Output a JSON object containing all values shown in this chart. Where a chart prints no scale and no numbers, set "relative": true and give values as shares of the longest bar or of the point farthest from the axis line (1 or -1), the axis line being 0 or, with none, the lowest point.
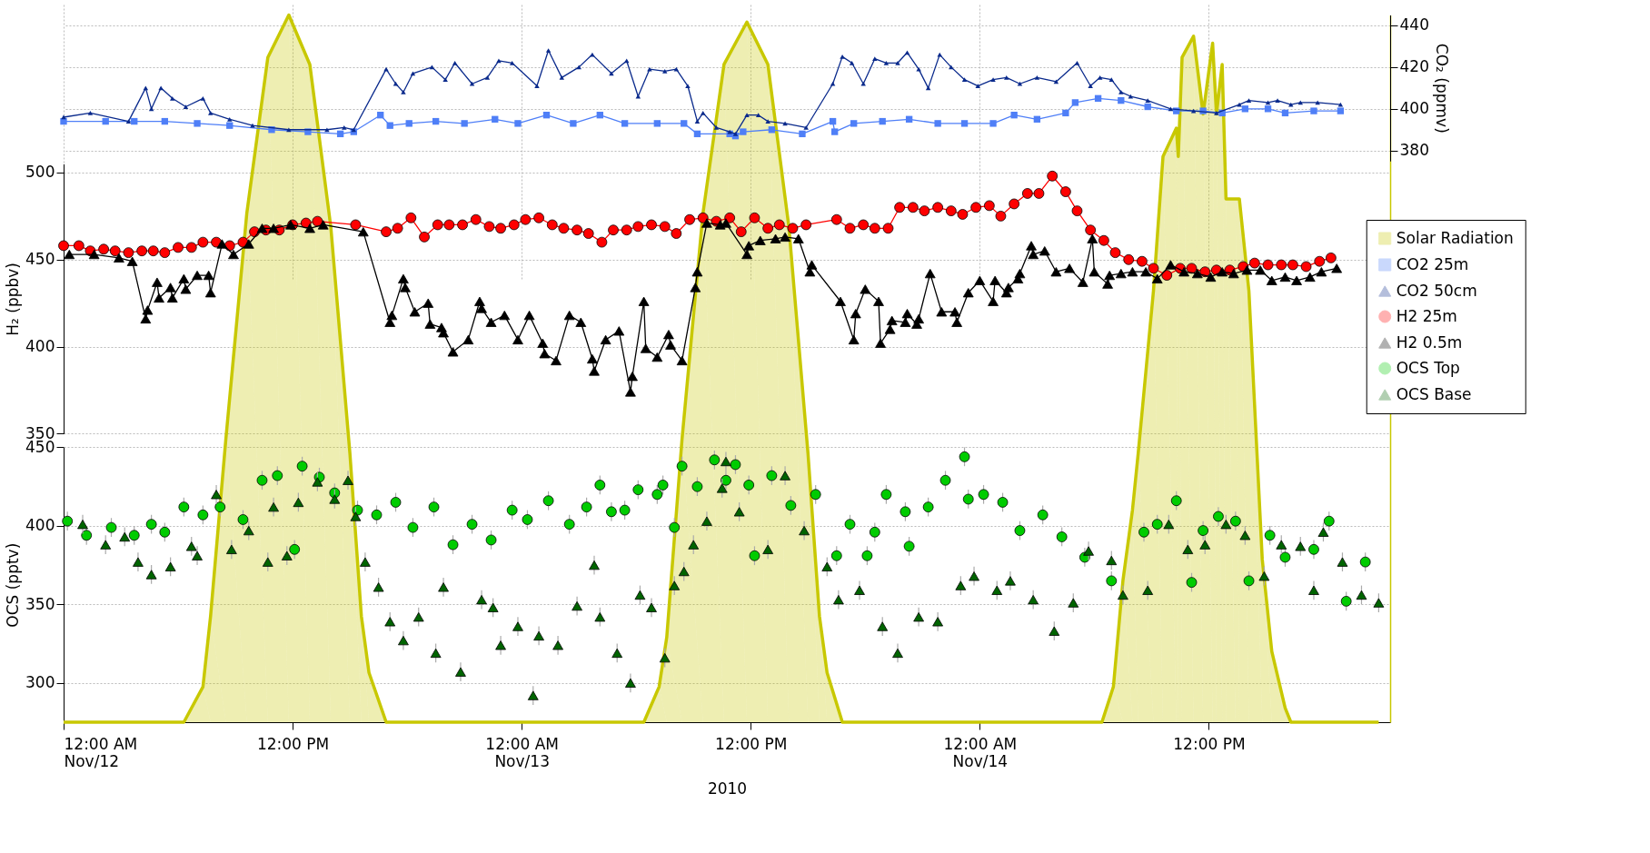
{
  "chart_data": [
    {
      "type": "line",
      "ylabel": "CO₂ (ppmv)",
      "ylim": [
        375,
        445
      ],
      "yticks": [
        380,
        400,
        420,
        440
      ],
      "grid": true,
      "legend": "right",
      "line_style": "solid",
      "tick_labels": "y",
      "xlim": [
        "2010-11-12T00:00",
        "2010-11-14T21:30"
      ],
      "series": [
        {
          "name": "CO2 25m",
          "marker": "square",
          "color": "#4f7ff7",
          "x": [
            "2010-11-12T00:00",
            "2010-11-12T02:12",
            "2010-11-12T03:42",
            "2010-11-12T05:18",
            "2010-11-12T07:00",
            "2010-11-12T08:42",
            "2010-11-12T10:54",
            "2010-11-12T12:48",
            "2010-11-12T14:30",
            "2010-11-12T15:12",
            "2010-11-12T16:36",
            "2010-11-12T17:06",
            "2010-11-12T18:06",
            "2010-11-12T19:30",
            "2010-11-12T21:00",
            "2010-11-12T22:36",
            "2010-11-12T23:48",
            "2010-11-13T01:18",
            "2010-11-13T02:42",
            "2010-11-13T04:06",
            "2010-11-13T05:24",
            "2010-11-13T07:06",
            "2010-11-13T08:30",
            "2010-11-13T09:12",
            "2010-11-13T10:54",
            "2010-11-13T11:12",
            "2010-11-13T11:36",
            "2010-11-13T13:06",
            "2010-11-13T14:42",
            "2010-11-13T16:18",
            "2010-11-13T16:24",
            "2010-11-13T17:24",
            "2010-11-13T18:54",
            "2010-11-13T20:18",
            "2010-11-13T21:48",
            "2010-11-13T23:12",
            "2010-11-14T00:42",
            "2010-11-14T01:48",
            "2010-11-14T03:00",
            "2010-11-14T04:30",
            "2010-11-14T05:00",
            "2010-11-14T06:12",
            "2010-11-14T07:24",
            "2010-11-14T08:48",
            "2010-11-14T10:18",
            "2010-11-14T11:42",
            "2010-11-14T12:42",
            "2010-11-14T13:54",
            "2010-11-14T15:06",
            "2010-11-14T16:00",
            "2010-11-14T17:30",
            "2010-11-14T18:54"
          ],
          "values": [
            394,
            394,
            394,
            394,
            393,
            392,
            390,
            389,
            388,
            389,
            397,
            392,
            393,
            394,
            393,
            395,
            393,
            397,
            393,
            397,
            393,
            393,
            393,
            388,
            388,
            387,
            389,
            390,
            388,
            394,
            389,
            393,
            394,
            395,
            393,
            393,
            393,
            397,
            395,
            398,
            403,
            405,
            404,
            401,
            399,
            399,
            398,
            400,
            400,
            398,
            399,
            399
          ]
        },
        {
          "name": "CO2 50cm",
          "marker": "triangle",
          "color": "#0a2a8c",
          "x": [
            "2010-11-12T00:00",
            "2010-11-12T01:24",
            "2010-11-12T03:24",
            "2010-11-12T04:18",
            "2010-11-12T04:36",
            "2010-11-12T05:06",
            "2010-11-12T05:42",
            "2010-11-12T06:24",
            "2010-11-12T07:18",
            "2010-11-12T07:42",
            "2010-11-12T08:42",
            "2010-11-12T09:54",
            "2010-11-12T11:48",
            "2010-11-12T13:48",
            "2010-11-12T14:42",
            "2010-11-12T15:12",
            "2010-11-12T16:54",
            "2010-11-12T17:24",
            "2010-11-12T17:48",
            "2010-11-12T18:18",
            "2010-11-12T19:18",
            "2010-11-12T20:00",
            "2010-11-12T20:30",
            "2010-11-12T21:24",
            "2010-11-12T22:12",
            "2010-11-12T22:48",
            "2010-11-12T23:30",
            "2010-11-13T00:48",
            "2010-11-13T01:24",
            "2010-11-13T02:06",
            "2010-11-13T03:00",
            "2010-11-13T03:42",
            "2010-11-13T04:42",
            "2010-11-13T05:30",
            "2010-11-13T06:06",
            "2010-11-13T06:42",
            "2010-11-13T07:30",
            "2010-11-13T08:06",
            "2010-11-13T08:42",
            "2010-11-13T09:12",
            "2010-11-13T09:30",
            "2010-11-13T10:12",
            "2010-11-13T10:54",
            "2010-11-13T11:12",
            "2010-11-13T11:48",
            "2010-11-13T12:24",
            "2010-11-13T12:54",
            "2010-11-13T13:48",
            "2010-11-13T14:54",
            "2010-11-13T16:18",
            "2010-11-13T16:48",
            "2010-11-13T17:18",
            "2010-11-13T17:54",
            "2010-11-13T18:30",
            "2010-11-13T19:06",
            "2010-11-13T19:42",
            "2010-11-13T20:12",
            "2010-11-13T20:48",
            "2010-11-13T21:18",
            "2010-11-13T21:54",
            "2010-11-13T22:30",
            "2010-11-13T23:12",
            "2010-11-13T23:54",
            "2010-11-14T00:42",
            "2010-11-14T01:24",
            "2010-11-14T02:06",
            "2010-11-14T03:00",
            "2010-11-14T04:00",
            "2010-11-14T05:06",
            "2010-11-14T05:48",
            "2010-11-14T06:18",
            "2010-11-14T06:54",
            "2010-11-14T07:24",
            "2010-11-14T07:54",
            "2010-11-14T08:48",
            "2010-11-14T10:00",
            "2010-11-14T11:12",
            "2010-11-14T12:24",
            "2010-11-14T13:36",
            "2010-11-14T14:06",
            "2010-11-14T15:06",
            "2010-11-14T15:36",
            "2010-11-14T16:18",
            "2010-11-14T16:48",
            "2010-11-14T17:42",
            "2010-11-14T18:54"
          ],
          "values": [
            396,
            398,
            394,
            410,
            400,
            410,
            405,
            401,
            405,
            398,
            395,
            392,
            390,
            390,
            391,
            390,
            419,
            412,
            408,
            417,
            420,
            414,
            422,
            412,
            415,
            423,
            422,
            411,
            428,
            415,
            420,
            426,
            417,
            423,
            406,
            419,
            418,
            419,
            411,
            394,
            398,
            391,
            389,
            388,
            397,
            397,
            394,
            393,
            391,
            412,
            425,
            422,
            412,
            424,
            422,
            422,
            427,
            419,
            410,
            426,
            420,
            414,
            411,
            414,
            415,
            412,
            415,
            413,
            422,
            411,
            415,
            414,
            408,
            406,
            404,
            400,
            399,
            398,
            402,
            404,
            403,
            404,
            402,
            403,
            403,
            402
          ]
        }
      ]
    },
    {
      "type": "line",
      "ylabel": "H₂ (ppbv)",
      "ylim": [
        350,
        505
      ],
      "yticks": [
        350,
        400,
        450,
        500
      ],
      "grid": true,
      "legend": "right",
      "line_style": "solid",
      "tick_labels": "y",
      "xlim": [
        "2010-11-12T00:00",
        "2010-11-14T21:30"
      ],
      "series": [
        {
          "name": "H2 25m",
          "marker": "circle",
          "color": "#ff0000",
          "x": [
            "2010-11-12T00:00",
            "2010-11-12T00:48",
            "2010-11-12T01:24",
            "2010-11-12T02:06",
            "2010-11-12T02:42",
            "2010-11-12T03:24",
            "2010-11-12T04:06",
            "2010-11-12T04:42",
            "2010-11-12T05:18",
            "2010-11-12T06:00",
            "2010-11-12T06:42",
            "2010-11-12T07:18",
            "2010-11-12T08:00",
            "2010-11-12T08:42",
            "2010-11-12T09:24",
            "2010-11-12T10:00",
            "2010-11-12T10:36",
            "2010-11-12T11:18",
            "2010-11-12T12:00",
            "2010-11-12T12:42",
            "2010-11-12T13:18",
            "2010-11-12T15:18",
            "2010-11-12T16:54",
            "2010-11-12T17:30",
            "2010-11-12T18:12",
            "2010-11-12T18:54",
            "2010-11-12T19:36",
            "2010-11-12T20:12",
            "2010-11-12T20:54",
            "2010-11-12T21:36",
            "2010-11-12T22:18",
            "2010-11-12T22:54",
            "2010-11-12T23:36",
            "2010-11-13T00:12",
            "2010-11-13T00:54",
            "2010-11-13T01:36",
            "2010-11-13T02:12",
            "2010-11-13T02:54",
            "2010-11-13T03:30",
            "2010-11-13T04:12",
            "2010-11-13T04:48",
            "2010-11-13T05:30",
            "2010-11-13T06:06",
            "2010-11-13T06:48",
            "2010-11-13T07:30",
            "2010-11-13T08:06",
            "2010-11-13T08:48",
            "2010-11-13T09:30",
            "2010-11-13T10:12",
            "2010-11-13T10:54",
            "2010-11-13T11:30",
            "2010-11-13T12:12",
            "2010-11-13T12:54",
            "2010-11-13T13:30",
            "2010-11-13T14:12",
            "2010-11-13T14:54",
            "2010-11-13T16:30",
            "2010-11-13T17:12",
            "2010-11-13T17:54",
            "2010-11-13T18:30",
            "2010-11-13T19:12",
            "2010-11-13T19:48",
            "2010-11-13T20:30",
            "2010-11-13T21:06",
            "2010-11-13T21:48",
            "2010-11-13T22:30",
            "2010-11-13T23:06",
            "2010-11-13T23:48",
            "2010-11-14T00:30",
            "2010-11-14T01:06",
            "2010-11-14T01:48",
            "2010-11-14T02:30",
            "2010-11-14T03:06",
            "2010-11-14T03:48",
            "2010-11-14T04:30",
            "2010-11-14T05:06",
            "2010-11-14T05:48",
            "2010-11-14T06:30",
            "2010-11-14T07:06",
            "2010-11-14T07:48",
            "2010-11-14T08:30",
            "2010-11-14T09:06",
            "2010-11-14T09:48",
            "2010-11-14T10:30",
            "2010-11-14T11:06",
            "2010-11-14T11:48",
            "2010-11-14T12:24",
            "2010-11-14T13:06",
            "2010-11-14T13:48",
            "2010-11-14T14:24",
            "2010-11-14T15:06",
            "2010-11-14T15:48",
            "2010-11-14T16:24",
            "2010-11-14T17:06",
            "2010-11-14T17:48",
            "2010-11-14T18:24"
          ],
          "values": [
            458,
            458,
            455,
            456,
            455,
            454,
            455,
            455,
            454,
            457,
            457,
            460,
            460,
            458,
            460,
            466,
            467,
            467,
            470,
            471,
            472,
            470,
            466,
            468,
            474,
            463,
            470,
            470,
            470,
            473,
            469,
            468,
            470,
            473,
            474,
            470,
            468,
            467,
            465,
            460,
            467,
            467,
            469,
            470,
            469,
            465,
            473,
            474,
            472,
            474,
            466,
            474,
            468,
            470,
            468,
            470,
            473,
            468,
            470,
            468,
            468,
            480,
            480,
            478,
            480,
            478,
            476,
            480,
            481,
            475,
            482,
            488,
            488,
            498,
            489,
            478,
            467,
            461,
            454,
            450,
            449,
            445,
            441,
            445,
            445,
            443,
            444,
            444,
            446,
            448,
            447,
            447,
            447,
            446,
            449,
            451
          ]
        },
        {
          "name": "H2 0.5m",
          "marker": "triangle",
          "color": "#000000",
          "x": [
            "2010-11-12T00:18",
            "2010-11-12T01:36",
            "2010-11-12T02:54",
            "2010-11-12T03:36",
            "2010-11-12T04:18",
            "2010-11-12T04:24",
            "2010-11-12T04:54",
            "2010-11-12T05:00",
            "2010-11-12T05:36",
            "2010-11-12T05:42",
            "2010-11-12T06:18",
            "2010-11-12T06:24",
            "2010-11-12T07:00",
            "2010-11-12T07:36",
            "2010-11-12T07:42",
            "2010-11-12T08:18",
            "2010-11-12T08:54",
            "2010-11-12T09:42",
            "2010-11-12T10:24",
            "2010-11-12T11:00",
            "2010-11-12T11:54",
            "2010-11-12T12:54",
            "2010-11-12T13:36",
            "2010-11-12T15:42",
            "2010-11-12T17:06",
            "2010-11-12T17:12",
            "2010-11-12T17:48",
            "2010-11-12T17:54",
            "2010-11-12T18:24",
            "2010-11-12T19:06",
            "2010-11-12T19:12",
            "2010-11-12T19:48",
            "2010-11-12T19:54",
            "2010-11-12T20:24",
            "2010-11-12T21:12",
            "2010-11-12T21:48",
            "2010-11-12T21:54",
            "2010-11-12T22:24",
            "2010-11-12T23:06",
            "2010-11-12T23:48",
            "2010-11-13T00:24",
            "2010-11-13T01:06",
            "2010-11-13T01:12",
            "2010-11-13T01:48",
            "2010-11-13T02:30",
            "2010-11-13T03:06",
            "2010-11-13T03:42",
            "2010-11-13T03:48",
            "2010-11-13T04:24",
            "2010-11-13T05:06",
            "2010-11-13T05:42",
            "2010-11-13T05:48",
            "2010-11-13T06:24",
            "2010-11-13T06:30",
            "2010-11-13T07:06",
            "2010-11-13T07:42",
            "2010-11-13T07:48",
            "2010-11-13T08:24",
            "2010-11-13T09:06",
            "2010-11-13T09:12",
            "2010-11-13T09:42",
            "2010-11-13T10:24",
            "2010-11-13T10:42",
            "2010-11-13T11:48",
            "2010-11-13T11:54",
            "2010-11-13T12:30",
            "2010-11-13T13:18",
            "2010-11-13T13:48",
            "2010-11-13T14:30",
            "2010-11-13T15:06",
            "2010-11-13T15:12",
            "2010-11-13T16:42",
            "2010-11-13T17:24",
            "2010-11-13T17:30",
            "2010-11-13T18:00",
            "2010-11-13T18:42",
            "2010-11-13T18:48",
            "2010-11-13T19:18",
            "2010-11-13T19:24",
            "2010-11-13T20:06",
            "2010-11-13T20:12",
            "2010-11-13T20:42",
            "2010-11-13T20:48",
            "2010-11-13T21:24",
            "2010-11-13T22:00",
            "2010-11-13T22:42",
            "2010-11-13T22:48",
            "2010-11-13T23:24",
            "2010-11-14T00:00",
            "2010-11-14T00:42",
            "2010-11-14T00:48",
            "2010-11-14T01:24",
            "2010-11-14T01:30",
            "2010-11-14T02:00",
            "2010-11-14T02:06",
            "2010-11-14T02:42",
            "2010-11-14T02:48",
            "2010-11-14T03:24",
            "2010-11-14T04:00",
            "2010-11-14T04:42",
            "2010-11-14T05:24",
            "2010-11-14T05:54",
            "2010-11-14T06:00",
            "2010-11-14T06:42",
            "2010-11-14T06:48",
            "2010-11-14T07:24",
            "2010-11-14T08:00",
            "2010-11-14T08:42",
            "2010-11-14T09:18",
            "2010-11-14T10:00",
            "2010-11-14T10:42",
            "2010-11-14T11:24",
            "2010-11-14T12:06",
            "2010-11-14T12:42",
            "2010-11-14T13:18",
            "2010-11-14T14:00",
            "2010-11-14T14:42",
            "2010-11-14T15:18",
            "2010-11-14T16:00",
            "2010-11-14T16:36",
            "2010-11-14T17:18",
            "2010-11-14T17:54",
            "2010-11-14T18:42"
          ],
          "values": [
            453,
            453,
            451,
            449,
            416,
            421,
            437,
            428,
            434,
            428,
            439,
            433,
            441,
            441,
            431,
            459,
            453,
            459,
            468,
            468,
            470,
            468,
            470,
            466,
            414,
            418,
            439,
            434,
            420,
            425,
            413,
            411,
            408,
            397,
            404,
            426,
            422,
            414,
            418,
            404,
            418,
            402,
            396,
            392,
            418,
            414,
            393,
            386,
            404,
            409,
            374,
            383,
            426,
            399,
            394,
            407,
            401,
            392,
            434,
            443,
            471,
            470,
            471,
            453,
            458,
            461,
            462,
            463,
            462,
            443,
            447,
            426,
            404,
            419,
            433,
            426,
            402,
            410,
            415,
            414,
            419,
            413,
            416,
            442,
            420,
            420,
            414,
            431,
            438,
            426,
            438,
            431,
            434,
            439,
            442,
            458,
            453,
            455,
            443,
            445,
            437,
            462,
            443,
            436,
            441,
            442,
            443,
            443,
            439,
            447,
            443,
            442,
            440,
            443,
            442,
            444,
            444,
            438,
            440,
            438,
            440,
            443,
            445
          ]
        }
      ]
    },
    {
      "type": "scatter",
      "ylabel": "OCS (pptv)",
      "xlabel": "2010",
      "ylim": [
        275,
        450
      ],
      "yticks": [
        300,
        350,
        400,
        450
      ],
      "grid": true,
      "legend": "right",
      "xlim": [
        "2010-11-12T00:00",
        "2010-11-14T21:30"
      ],
      "xticks": [
        {
          "value": "2010-11-12T00:00",
          "label": "12:00 AM\nNov/12"
        },
        {
          "value": "2010-11-12T12:00",
          "label": "12:00 PM"
        },
        {
          "value": "2010-11-13T00:00",
          "label": "12:00 AM\nNov/13"
        },
        {
          "value": "2010-11-13T12:00",
          "label": "12:00 PM"
        },
        {
          "value": "2010-11-14T00:00",
          "label": "12:00 AM\nNov/14"
        },
        {
          "value": "2010-11-14T12:00",
          "label": "12:00 PM"
        }
      ],
      "series": [
        {
          "name": "OCS Top",
          "marker": "circle",
          "color": "#00cc00",
          "x": [
            "2010-11-12T00:12",
            "2010-11-12T01:12",
            "2010-11-12T02:30",
            "2010-11-12T03:42",
            "2010-11-12T04:36",
            "2010-11-12T05:18",
            "2010-11-12T06:18",
            "2010-11-12T07:18",
            "2010-11-12T08:12",
            "2010-11-12T09:24",
            "2010-11-12T10:24",
            "2010-11-12T11:12",
            "2010-11-12T12:06",
            "2010-11-12T12:30",
            "2010-11-12T13:24",
            "2010-11-12T14:12",
            "2010-11-12T15:24",
            "2010-11-12T16:24",
            "2010-11-12T17:24",
            "2010-11-12T18:18",
            "2010-11-12T19:24",
            "2010-11-12T20:24",
            "2010-11-12T21:24",
            "2010-11-12T22:24",
            "2010-11-12T23:30",
            "2010-11-13T00:18",
            "2010-11-13T01:24",
            "2010-11-13T02:30",
            "2010-11-13T03:24",
            "2010-11-13T04:06",
            "2010-11-13T04:42",
            "2010-11-13T05:24",
            "2010-11-13T06:06",
            "2010-11-13T07:06",
            "2010-11-13T07:24",
            "2010-11-13T08:00",
            "2010-11-13T08:24",
            "2010-11-13T09:12",
            "2010-11-13T10:06",
            "2010-11-13T10:42",
            "2010-11-13T11:12",
            "2010-11-13T11:54",
            "2010-11-13T12:12",
            "2010-11-13T13:06",
            "2010-11-13T14:06",
            "2010-11-13T15:24",
            "2010-11-13T16:30",
            "2010-11-13T17:12",
            "2010-11-13T18:06",
            "2010-11-13T18:30",
            "2010-11-13T19:06",
            "2010-11-13T20:06",
            "2010-11-13T20:18",
            "2010-11-13T21:18",
            "2010-11-13T22:12",
            "2010-11-13T23:12",
            "2010-11-13T23:24",
            "2010-11-14T00:12",
            "2010-11-14T01:12",
            "2010-11-14T02:06",
            "2010-11-14T03:18",
            "2010-11-14T04:18",
            "2010-11-14T05:30",
            "2010-11-14T06:54",
            "2010-11-14T08:36",
            "2010-11-14T09:18",
            "2010-11-14T10:18",
            "2010-11-14T11:06",
            "2010-11-14T11:42",
            "2010-11-14T12:30",
            "2010-11-14T13:24",
            "2010-11-14T14:06",
            "2010-11-14T15:12",
            "2010-11-14T16:00",
            "2010-11-14T17:30",
            "2010-11-14T18:18",
            "2010-11-14T19:12",
            "2010-11-14T20:12"
          ],
          "values": [
            403,
            394,
            399,
            394,
            401,
            396,
            412,
            407,
            412,
            404,
            429,
            432,
            385,
            438,
            431,
            421,
            410,
            407,
            415,
            399,
            412,
            388,
            401,
            391,
            410,
            404,
            416,
            401,
            412,
            426,
            409,
            410,
            423,
            420,
            426,
            399,
            438,
            425,
            442,
            429,
            439,
            426,
            381,
            432,
            413,
            420,
            381,
            401,
            381,
            396,
            420,
            409,
            387,
            412,
            429,
            444,
            417,
            420,
            415,
            397,
            407,
            393,
            380,
            365,
            396,
            401,
            416,
            364,
            397,
            406,
            403,
            365,
            394,
            380,
            385,
            403,
            352,
            377
          ],
          "errors": [
            6,
            6,
            6,
            6,
            6,
            6,
            6,
            6,
            6,
            6,
            6,
            6,
            6,
            6,
            6,
            6,
            6,
            6,
            6,
            6,
            6,
            6,
            6,
            6,
            6,
            6,
            6,
            6,
            6,
            6,
            6,
            6,
            6,
            6,
            6,
            6,
            6,
            6,
            6,
            6,
            6,
            6,
            6,
            6,
            6,
            6,
            6,
            6,
            6,
            6,
            6,
            6,
            6,
            6,
            6,
            6,
            6,
            6,
            6,
            6,
            6,
            6,
            6,
            6,
            6,
            6,
            6,
            6,
            6,
            6,
            6,
            6,
            6,
            6,
            6,
            6,
            6,
            6
          ]
        },
        {
          "name": "OCS Base",
          "marker": "triangle",
          "color": "#006400",
          "x": [
            "2010-11-12T01:00",
            "2010-11-12T02:12",
            "2010-11-12T03:12",
            "2010-11-12T03:54",
            "2010-11-12T04:36",
            "2010-11-12T05:36",
            "2010-11-12T06:42",
            "2010-11-12T07:00",
            "2010-11-12T08:00",
            "2010-11-12T08:48",
            "2010-11-12T09:42",
            "2010-11-12T10:42",
            "2010-11-12T11:00",
            "2010-11-12T11:42",
            "2010-11-12T12:18",
            "2010-11-12T13:18",
            "2010-11-12T14:12",
            "2010-11-12T14:54",
            "2010-11-12T15:18",
            "2010-11-12T15:48",
            "2010-11-12T16:30",
            "2010-11-12T17:06",
            "2010-11-12T17:48",
            "2010-11-12T18:36",
            "2010-11-12T19:30",
            "2010-11-12T19:54",
            "2010-11-12T20:48",
            "2010-11-12T21:54",
            "2010-11-12T22:30",
            "2010-11-12T22:54",
            "2010-11-12T23:48",
            "2010-11-13T00:36",
            "2010-11-13T00:54",
            "2010-11-13T01:54",
            "2010-11-13T02:54",
            "2010-11-13T03:48",
            "2010-11-13T04:06",
            "2010-11-13T05:00",
            "2010-11-13T05:42",
            "2010-11-13T06:12",
            "2010-11-13T06:48",
            "2010-11-13T07:30",
            "2010-11-13T08:00",
            "2010-11-13T08:30",
            "2010-11-13T09:00",
            "2010-11-13T09:42",
            "2010-11-13T10:30",
            "2010-11-13T10:42",
            "2010-11-13T11:24",
            "2010-11-13T12:54",
            "2010-11-13T13:48",
            "2010-11-13T14:48",
            "2010-11-13T16:00",
            "2010-11-13T16:36",
            "2010-11-13T17:42",
            "2010-11-13T18:54",
            "2010-11-13T19:42",
            "2010-11-13T20:48",
            "2010-11-13T21:48",
            "2010-11-13T23:00",
            "2010-11-13T23:42",
            "2010-11-14T00:54",
            "2010-11-14T01:36",
            "2010-11-14T02:48",
            "2010-11-14T03:54",
            "2010-11-14T04:54",
            "2010-11-14T05:42",
            "2010-11-14T06:54",
            "2010-11-14T07:30",
            "2010-11-14T08:48",
            "2010-11-14T09:54",
            "2010-11-14T10:54",
            "2010-11-14T11:48",
            "2010-11-14T12:54",
            "2010-11-14T13:54",
            "2010-11-14T14:54",
            "2010-11-14T15:48",
            "2010-11-14T16:48",
            "2010-11-14T17:30",
            "2010-11-14T18:00",
            "2010-11-14T19:00",
            "2010-11-14T20:00",
            "2010-11-14T20:54"
          ],
          "values": [
            401,
            388,
            393,
            377,
            369,
            374,
            387,
            381,
            420,
            385,
            397,
            377,
            412,
            381,
            415,
            428,
            417,
            429,
            406,
            377,
            361,
            339,
            327,
            342,
            319,
            361,
            307,
            353,
            348,
            324,
            336,
            292,
            330,
            324,
            349,
            375,
            342,
            319,
            300,
            356,
            348,
            316,
            362,
            371,
            388,
            403,
            424,
            441,
            409,
            385,
            432,
            397,
            374,
            353,
            359,
            336,
            319,
            342,
            339,
            362,
            368,
            359,
            365,
            353,
            333,
            351,
            384,
            378,
            356,
            359,
            401,
            385,
            388,
            401,
            394,
            368,
            388,
            387,
            359,
            396,
            377,
            356,
            351
          ],
          "errors": [
            6,
            6,
            6,
            6,
            6,
            6,
            6,
            6,
            6,
            6,
            6,
            6,
            6,
            6,
            6,
            6,
            6,
            6,
            6,
            6,
            6,
            6,
            6,
            6,
            6,
            6,
            6,
            6,
            6,
            6,
            6,
            6,
            6,
            6,
            6,
            6,
            6,
            6,
            6,
            6,
            6,
            6,
            6,
            6,
            6,
            6,
            6,
            6,
            6,
            6,
            6,
            6,
            6,
            6,
            6,
            6,
            6,
            6,
            6,
            6,
            6,
            6,
            6,
            6,
            6,
            6,
            6,
            6,
            6,
            6,
            6,
            6,
            6,
            6,
            6,
            6,
            6,
            6,
            6,
            6,
            6,
            6,
            6
          ]
        }
      ]
    },
    {
      "type": "area",
      "relative": true,
      "legend": "right",
      "tick_labels": false,
      "xlim": [
        "2010-11-12T00:00",
        "2010-11-14T21:30"
      ],
      "series": [
        {
          "name": "Solar Radiation",
          "color": "#c8c800",
          "x": [
            "2010-11-12T00:00",
            "2010-11-12T06:18",
            "2010-11-12T07:18",
            "2010-11-12T07:42",
            "2010-11-12T08:30",
            "2010-11-12T09:36",
            "2010-11-12T10:42",
            "2010-11-12T11:48",
            "2010-11-12T12:54",
            "2010-11-12T14:00",
            "2010-11-12T15:00",
            "2010-11-12T15:36",
            "2010-11-12T16:00",
            "2010-11-12T16:54",
            "2010-11-13T06:24",
            "2010-11-13T07:12",
            "2010-11-13T07:36",
            "2010-11-13T08:24",
            "2010-11-13T09:30",
            "2010-11-13T10:36",
            "2010-11-13T11:48",
            "2010-11-13T12:54",
            "2010-11-13T14:00",
            "2010-11-13T15:00",
            "2010-11-13T15:36",
            "2010-11-13T16:00",
            "2010-11-13T16:48",
            "2010-11-14T06:24",
            "2010-11-14T07:00",
            "2010-11-14T07:30",
            "2010-11-14T08:00",
            "2010-11-14T08:18",
            "2010-11-14T09:06",
            "2010-11-14T09:36",
            "2010-11-14T10:18",
            "2010-11-14T10:24",
            "2010-11-14T10:36",
            "2010-11-14T11:12",
            "2010-11-14T11:42",
            "2010-11-14T12:12",
            "2010-11-14T12:24",
            "2010-11-14T12:42",
            "2010-11-14T12:54",
            "2010-11-14T13:24",
            "2010-11-14T13:36",
            "2010-11-14T14:06",
            "2010-11-14T14:48",
            "2010-11-14T15:18",
            "2010-11-14T16:00",
            "2010-11-14T16:18",
            "2010-11-14T20:54"
          ],
          "values": [
            0,
            0,
            0.05,
            0.15,
            0.4,
            0.72,
            0.94,
            1,
            0.93,
            0.7,
            0.38,
            0.15,
            0.07,
            0,
            0,
            0.05,
            0.12,
            0.4,
            0.72,
            0.93,
            0.99,
            0.93,
            0.7,
            0.38,
            0.15,
            0.07,
            0,
            0,
            0.05,
            0.2,
            0.3,
            0.38,
            0.61,
            0.8,
            0.84,
            0.8,
            0.94,
            0.97,
            0.86,
            0.96,
            0.86,
            0.93,
            0.74,
            0.74,
            0.74,
            0.61,
            0.23,
            0.1,
            0.02,
            0,
            0
          ]
        }
      ]
    }
  ]
}
